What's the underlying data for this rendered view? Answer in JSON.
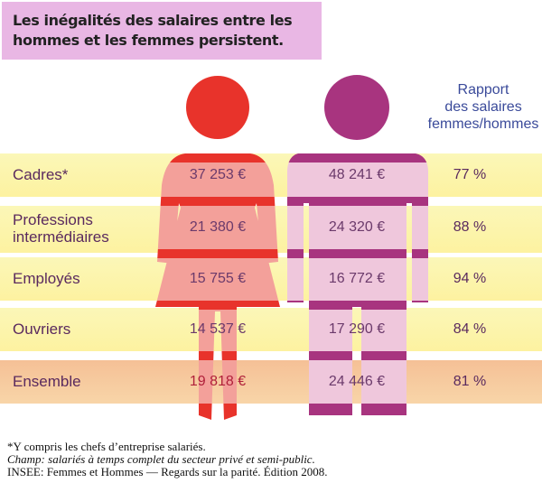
{
  "title": "Les inégalités des salaires entre les hommes et les femmes persistent.",
  "ratio_header": [
    "Rapport",
    "des salaires",
    "femmes/hommes"
  ],
  "rows": [
    {
      "label": "Cadres*",
      "women": "37 253 €",
      "men": "48 241 €",
      "ratio": "77 %"
    },
    {
      "label": "Professions intermédiaires",
      "women": "21 380 €",
      "men": "24 320 €",
      "ratio": "88 %"
    },
    {
      "label": "Employés",
      "women": "15 755 €",
      "men": "16 772 €",
      "ratio": "94 %"
    },
    {
      "label": "Ouvriers",
      "women": "14 537 €",
      "men": "17 290 €",
      "ratio": "84 %"
    },
    {
      "label": "Ensemble",
      "women": "19 818 €",
      "men": "24 446 €",
      "ratio": "81 %"
    }
  ],
  "footnotes": [
    "*Y compris les chefs d’entreprise salariés.",
    "Champ: salariés à temps complet du secteur privé et semi-public.",
    "INSEE: Femmes et Hommes — Regards sur la parité. Édition 2008."
  ],
  "chart_data": {
    "type": "table",
    "categories": [
      "Cadres*",
      "Professions intermédiaires",
      "Employés",
      "Ouvriers",
      "Ensemble"
    ],
    "series": [
      {
        "values": [
          37253,
          21380,
          15755,
          14537,
          19818
        ]
      },
      {
        "values": [
          48241,
          24320,
          16772,
          17290,
          24446
        ]
      },
      {
        "name": "Rapport des salaires femmes/hommes",
        "values": [
          77,
          88,
          94,
          84,
          81
        ]
      }
    ],
    "unit": "€"
  },
  "colors": {
    "title_bg": "#e9b7e4",
    "band_light": "#fdf8b2",
    "band_total": "#f6c79a",
    "woman": "#e8332b",
    "man": "#a8347f"
  }
}
